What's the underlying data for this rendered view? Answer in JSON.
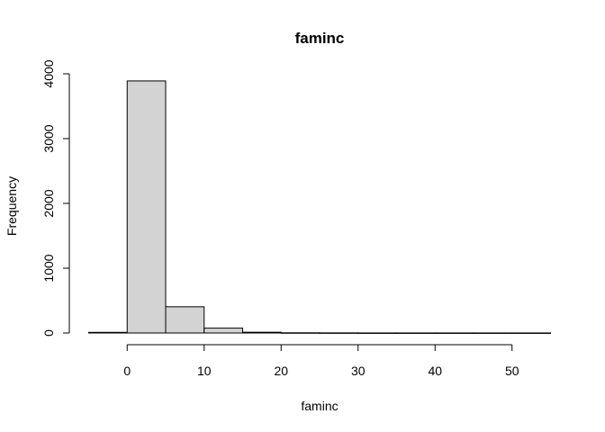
{
  "chart_data": {
    "type": "bar",
    "subtype": "histogram",
    "title": "faminc",
    "xlabel": "faminc",
    "ylabel": "Frequency",
    "bin_edges": [
      -5,
      0,
      5,
      10,
      15,
      20,
      25,
      30,
      35,
      40,
      45,
      50,
      55
    ],
    "values": [
      10,
      3890,
      405,
      75,
      12,
      3,
      2,
      1,
      1,
      1,
      1,
      1
    ],
    "xlim": [
      -5,
      55
    ],
    "ylim": [
      0,
      4000
    ],
    "x_ticks": [
      0,
      10,
      20,
      30,
      40,
      50
    ],
    "y_ticks": [
      0,
      1000,
      2000,
      3000,
      4000
    ],
    "bar_fill": "#d3d3d3",
    "bar_stroke": "#000000",
    "grid": false
  }
}
